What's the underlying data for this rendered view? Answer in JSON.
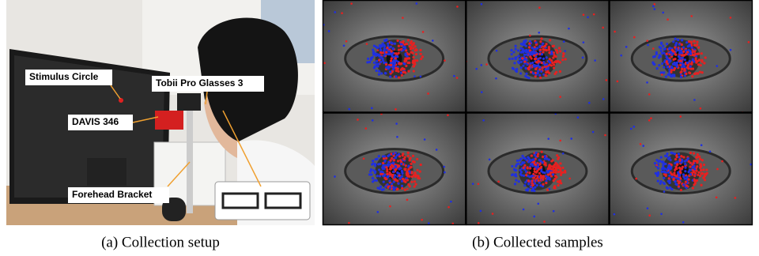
{
  "figure": {
    "panels": [
      {
        "caption": "(a) Collection setup",
        "labels": [
          "Stimulus Circle",
          "Tobii Pro Glasses 3",
          "DAVIS 346",
          "Forehead Bracket"
        ]
      },
      {
        "caption": "(b) Collected samples"
      }
    ]
  }
}
